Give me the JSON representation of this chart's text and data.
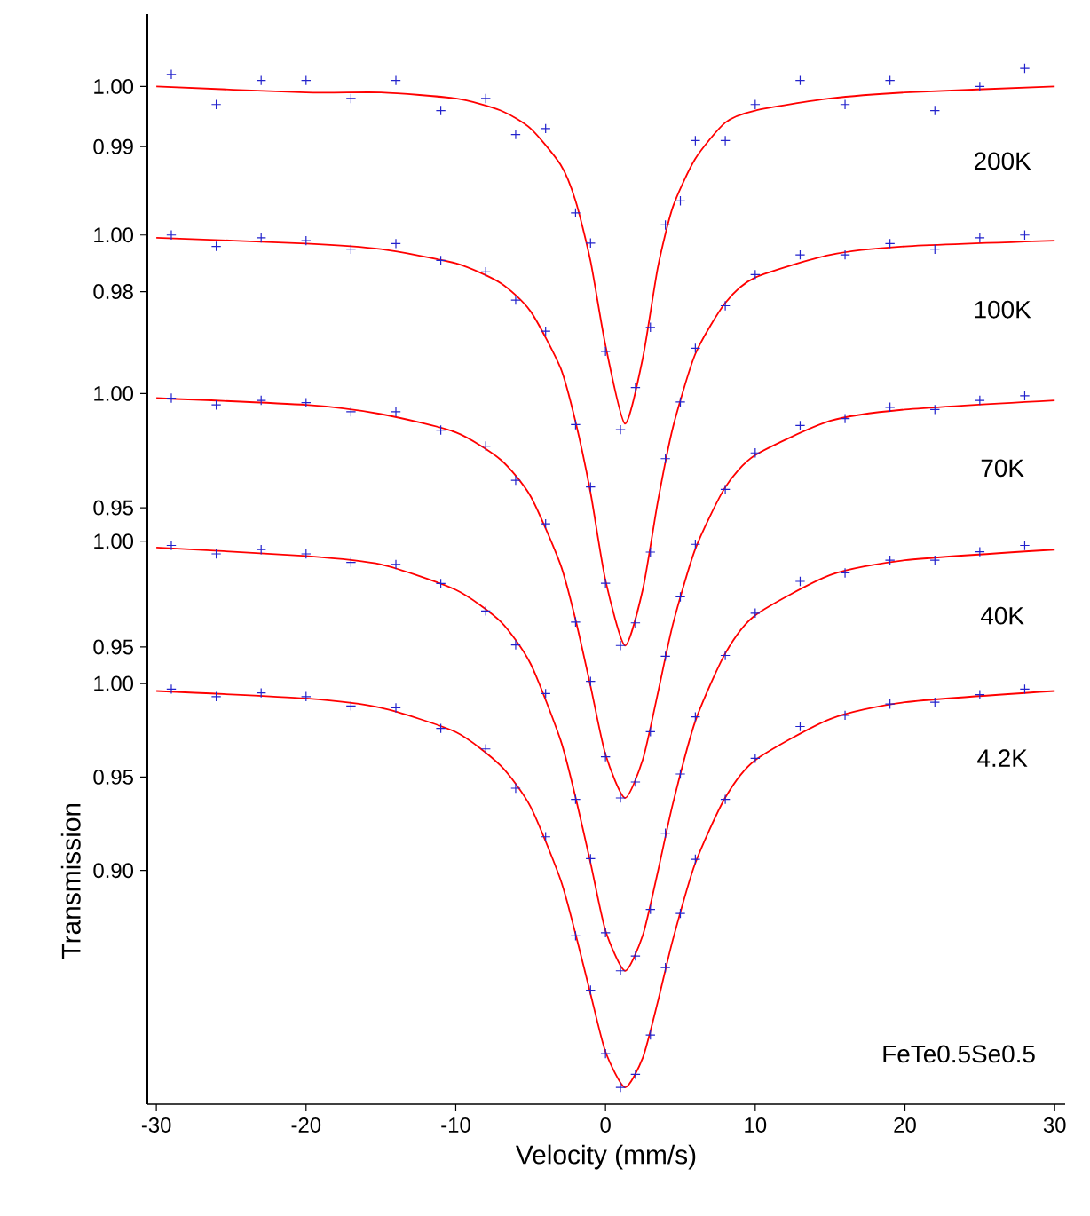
{
  "chart_data": [
    {
      "type": "scatter",
      "tick_labels": "y",
      "xlim": [
        -30.6,
        30.7
      ],
      "ylim": [
        0.831,
        1.012
      ],
      "yticks": [
        {
          "value": 0.99,
          "label": "0.99"
        },
        {
          "value": 1,
          "label": "1.00"
        }
      ],
      "annotations": [
        "200K"
      ],
      "series": [
        {
          "marker": "cross",
          "color": "#2222cc",
          "x": [
            -29,
            -26,
            -23,
            -20,
            -17,
            -14,
            -11,
            -8,
            -6,
            -4,
            -2,
            -1,
            0,
            1,
            2,
            3,
            4,
            5,
            6,
            8,
            10,
            13,
            16,
            19,
            22,
            25,
            28
          ],
          "values": [
            1.002,
            0.997,
            1.001,
            1.001,
            0.998,
            1.001,
            0.996,
            0.998,
            0.992,
            0.993,
            0.979,
            0.974,
            0.956,
            0.943,
            0.95,
            0.96,
            0.977,
            0.981,
            0.991,
            0.991,
            0.997,
            1.001,
            0.997,
            1.001,
            0.996,
            1.0,
            1.003
          ]
        },
        {
          "type": "line",
          "marker": "none",
          "color": "#ff0000",
          "x": [
            -30,
            -20,
            -15,
            -10,
            -7,
            -5,
            -3,
            -2,
            -1,
            0,
            1.3,
            2.5,
            3.5,
            4.5,
            6,
            8,
            10,
            15,
            20,
            30
          ],
          "values": [
            1.0,
            0.999,
            0.999,
            0.998,
            0.996,
            0.993,
            0.987,
            0.981,
            0.971,
            0.957,
            0.944,
            0.955,
            0.97,
            0.98,
            0.988,
            0.994,
            0.996,
            0.998,
            0.999,
            1.0
          ]
        }
      ]
    },
    {
      "type": "scatter",
      "tick_labels": "y",
      "xlim": [
        -30.6,
        30.7
      ],
      "ylim": [
        0.693,
        1.078
      ],
      "yticks": [
        {
          "value": 0.98,
          "label": "0.98"
        },
        {
          "value": 1,
          "label": "1.00"
        }
      ],
      "annotations": [
        "100K"
      ],
      "series": [
        {
          "marker": "cross",
          "color": "#2222cc",
          "x": [
            -29,
            -26,
            -23,
            -20,
            -17,
            -14,
            -11,
            -8,
            -6,
            -4,
            -2,
            -1,
            0,
            1,
            2,
            3,
            4,
            5,
            6,
            8,
            10,
            13,
            16,
            19,
            22,
            25,
            28
          ],
          "values": [
            1.0,
            0.996,
            0.999,
            0.998,
            0.995,
            0.997,
            0.991,
            0.987,
            0.977,
            0.966,
            0.933,
            0.911,
            0.877,
            0.855,
            0.863,
            0.888,
            0.921,
            0.941,
            0.96,
            0.975,
            0.986,
            0.993,
            0.993,
            0.997,
            0.995,
            0.999,
            1.0
          ]
        },
        {
          "type": "line",
          "marker": "none",
          "color": "#ff0000",
          "x": [
            -30,
            -20,
            -15,
            -10,
            -7,
            -5,
            -3,
            -2,
            -1,
            0,
            1.3,
            2.5,
            3.5,
            4.5,
            6,
            8,
            10,
            15,
            20,
            30
          ],
          "values": [
            0.999,
            0.997,
            0.995,
            0.99,
            0.983,
            0.973,
            0.953,
            0.934,
            0.909,
            0.878,
            0.855,
            0.875,
            0.906,
            0.932,
            0.958,
            0.976,
            0.985,
            0.993,
            0.996,
            0.998
          ]
        }
      ]
    },
    {
      "type": "scatter",
      "tick_labels": "y",
      "xlim": [
        -30.6,
        30.7
      ],
      "ylim": [
        0.689,
        1.166
      ],
      "yticks": [
        {
          "value": 0.95,
          "label": "0.95"
        },
        {
          "value": 1,
          "label": "1.00"
        }
      ],
      "annotations": [
        "70K"
      ],
      "series": [
        {
          "marker": "cross",
          "color": "#2222cc",
          "x": [
            -29,
            -26,
            -23,
            -20,
            -17,
            -14,
            -11,
            -8,
            -6,
            -4,
            -2,
            -1,
            0,
            1,
            2,
            3,
            4,
            5,
            6,
            8,
            10,
            13,
            16,
            19,
            22,
            25,
            28
          ],
          "values": [
            0.998,
            0.995,
            0.997,
            0.996,
            0.992,
            0.992,
            0.984,
            0.977,
            0.962,
            0.943,
            0.9,
            0.874,
            0.841,
            0.823,
            0.83,
            0.852,
            0.885,
            0.911,
            0.934,
            0.958,
            0.974,
            0.986,
            0.989,
            0.994,
            0.993,
            0.997,
            0.999
          ]
        },
        {
          "type": "line",
          "marker": "none",
          "color": "#ff0000",
          "x": [
            -30,
            -20,
            -15,
            -10,
            -7,
            -5,
            -3,
            -2,
            -1,
            0,
            1.3,
            2.5,
            3.5,
            4.5,
            6,
            8,
            10,
            15,
            20,
            30
          ],
          "values": [
            0.998,
            0.995,
            0.991,
            0.983,
            0.971,
            0.955,
            0.925,
            0.901,
            0.872,
            0.842,
            0.823,
            0.84,
            0.869,
            0.899,
            0.932,
            0.959,
            0.973,
            0.988,
            0.993,
            0.997
          ]
        }
      ]
    },
    {
      "type": "scatter",
      "tick_labels": "y",
      "xlim": [
        -30.6,
        30.7
      ],
      "ylim": [
        0.734,
        1.249
      ],
      "yticks": [
        {
          "value": 0.95,
          "label": "0.95"
        },
        {
          "value": 1,
          "label": "1.00"
        }
      ],
      "annotations": [
        "40K"
      ],
      "series": [
        {
          "marker": "cross",
          "color": "#2222cc",
          "x": [
            -29,
            -26,
            -23,
            -20,
            -17,
            -14,
            -11,
            -8,
            -6,
            -4,
            -2,
            -1,
            0,
            1,
            2,
            3,
            4,
            5,
            6,
            8,
            10,
            13,
            16,
            19,
            22,
            25,
            28
          ],
          "values": [
            0.998,
            0.994,
            0.996,
            0.994,
            0.99,
            0.989,
            0.98,
            0.967,
            0.951,
            0.928,
            0.878,
            0.85,
            0.815,
            0.797,
            0.804,
            0.826,
            0.862,
            0.89,
            0.917,
            0.946,
            0.966,
            0.981,
            0.985,
            0.991,
            0.991,
            0.995,
            0.998
          ]
        },
        {
          "type": "line",
          "marker": "none",
          "color": "#ff0000",
          "x": [
            -30,
            -20,
            -15,
            -10,
            -7,
            -5,
            -3,
            -2,
            -1,
            0,
            1.3,
            2.5,
            3.5,
            4.5,
            6,
            8,
            10,
            15,
            20,
            30
          ],
          "values": [
            0.997,
            0.993,
            0.989,
            0.977,
            0.962,
            0.942,
            0.906,
            0.879,
            0.848,
            0.816,
            0.797,
            0.814,
            0.844,
            0.876,
            0.915,
            0.947,
            0.965,
            0.984,
            0.991,
            0.996
          ]
        }
      ]
    },
    {
      "type": "scatter",
      "xlabel": "Velocity (mm/s)",
      "ylabel": "Transmission",
      "xlim": [
        -30.6,
        30.7
      ],
      "ylim": [
        0.775,
        1.358
      ],
      "xticks": [
        -30,
        -20,
        -10,
        0,
        10,
        20,
        30
      ],
      "yticks": [
        {
          "value": 0.9,
          "label": "0.90"
        },
        {
          "value": 0.95,
          "label": "0.95"
        },
        {
          "value": 1,
          "label": "1.00"
        }
      ],
      "annotations": [
        "4.2K",
        "FeTe0.5Se0.5"
      ],
      "series": [
        {
          "marker": "cross",
          "color": "#2222cc",
          "x": [
            -29,
            -26,
            -23,
            -20,
            -17,
            -14,
            -11,
            -8,
            -6,
            -4,
            -2,
            -1,
            0,
            1,
            2,
            3,
            4,
            5,
            6,
            8,
            10,
            13,
            16,
            19,
            22,
            25,
            28
          ],
          "values": [
            0.997,
            0.993,
            0.995,
            0.993,
            0.988,
            0.987,
            0.976,
            0.965,
            0.944,
            0.918,
            0.865,
            0.836,
            0.802,
            0.784,
            0.791,
            0.812,
            0.848,
            0.877,
            0.906,
            0.938,
            0.96,
            0.977,
            0.983,
            0.989,
            0.99,
            0.994,
            0.997
          ]
        },
        {
          "type": "line",
          "marker": "none",
          "color": "#ff0000",
          "x": [
            -30,
            -20,
            -15,
            -10,
            -7,
            -5,
            -3,
            -2,
            -1,
            0,
            1.3,
            2.5,
            3.5,
            4.5,
            6,
            8,
            10,
            15,
            20,
            30
          ],
          "values": [
            0.996,
            0.992,
            0.987,
            0.974,
            0.956,
            0.934,
            0.895,
            0.866,
            0.834,
            0.803,
            0.784,
            0.8,
            0.83,
            0.863,
            0.904,
            0.939,
            0.959,
            0.981,
            0.99,
            0.996
          ]
        }
      ]
    }
  ]
}
